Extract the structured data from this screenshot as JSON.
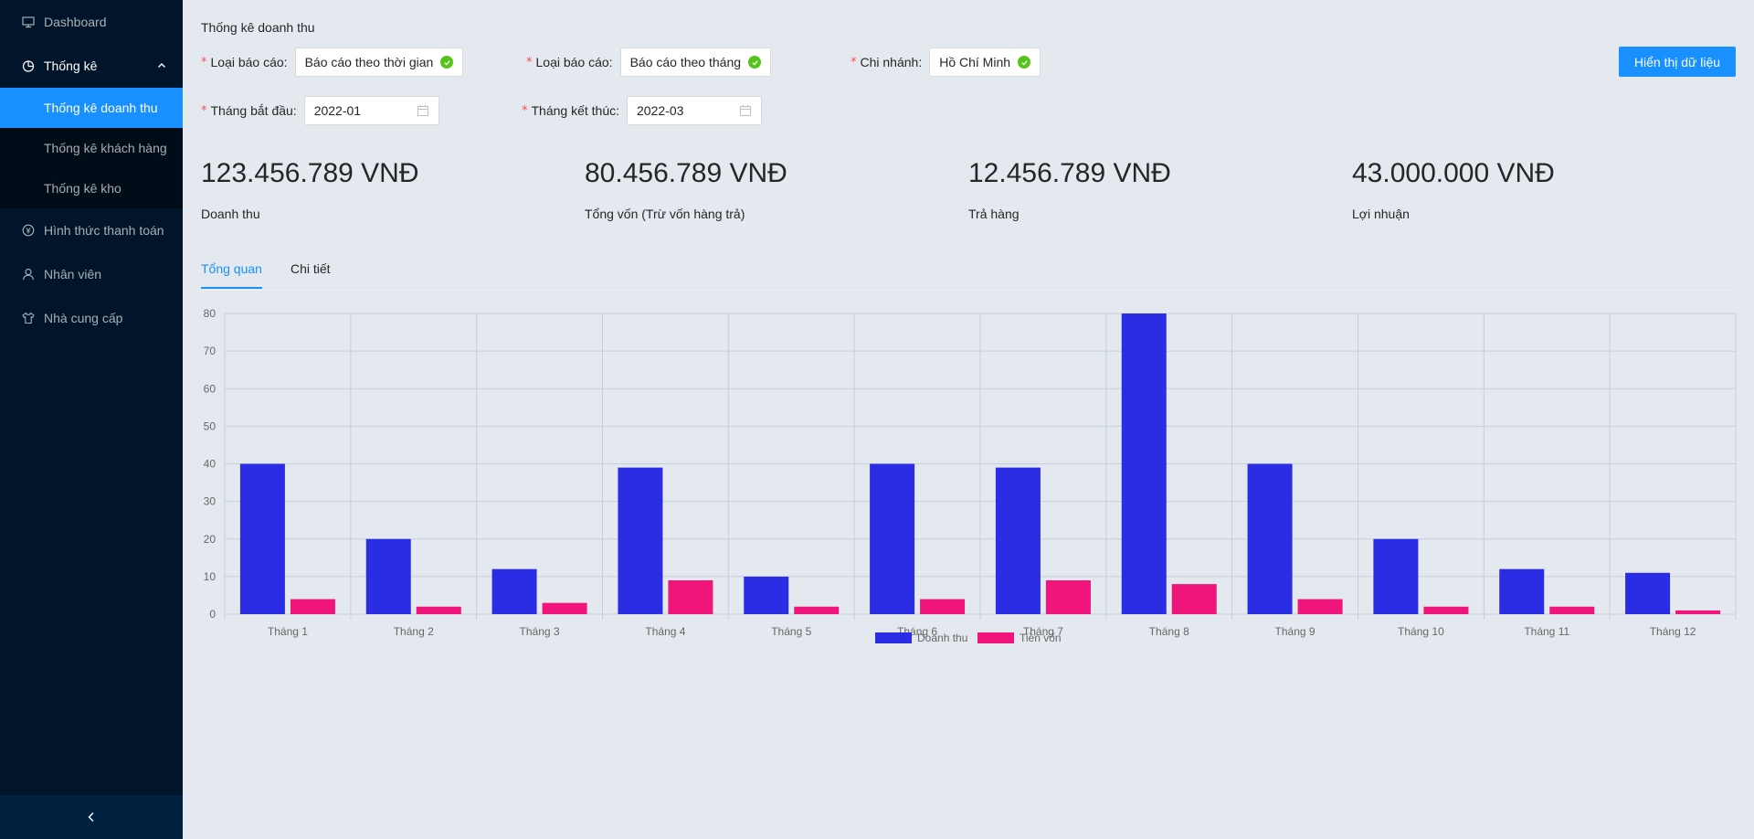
{
  "sidebar": {
    "items": [
      {
        "label": "Dashboard",
        "icon": "monitor-icon"
      },
      {
        "label": "Thống kê",
        "icon": "pie-chart-icon"
      },
      {
        "label": "Hình thức thanh toán",
        "icon": "payment-icon"
      },
      {
        "label": "Nhân viên",
        "icon": "user-icon"
      },
      {
        "label": "Nhà cung cấp",
        "icon": "shirt-icon"
      }
    ],
    "submenu": [
      {
        "label": "Thống kê doanh thu"
      },
      {
        "label": "Thống kê khách hàng"
      },
      {
        "label": "Thống kê kho"
      }
    ]
  },
  "page": {
    "title": "Thống kê doanh thu"
  },
  "filters": {
    "report_type_1": {
      "label": "Loại báo cáo:",
      "value": "Báo cáo theo thời gian"
    },
    "report_type_2": {
      "label": "Loại báo cáo:",
      "value": "Báo cáo theo tháng"
    },
    "branch": {
      "label": "Chi nhánh:",
      "value": "Hồ Chí Minh"
    },
    "start_month": {
      "label": "Tháng bắt đầu:",
      "value": "2022-01"
    },
    "end_month": {
      "label": "Tháng kết thúc:",
      "value": "2022-03"
    },
    "submit_label": "Hiển thị dữ liệu"
  },
  "stats": [
    {
      "value": "123.456.789 VNĐ",
      "caption": "Doanh thu"
    },
    {
      "value": "80.456.789 VNĐ",
      "caption": "Tổng vốn (Trừ vốn hàng trả)"
    },
    {
      "value": "12.456.789 VNĐ",
      "caption": "Trả hàng"
    },
    {
      "value": "43.000.000 VNĐ",
      "caption": "Lợi nhuận"
    }
  ],
  "tabs": [
    {
      "label": "Tổng quan"
    },
    {
      "label": "Chi tiết"
    }
  ],
  "colors": {
    "accent": "#1890ff",
    "series_1": "#2b2de5",
    "series_2": "#f0157a"
  },
  "chart_data": {
    "type": "bar",
    "categories": [
      "Tháng 1",
      "Tháng 2",
      "Tháng 3",
      "Tháng 4",
      "Tháng 5",
      "Tháng 6",
      "Tháng 7",
      "Tháng 8",
      "Tháng 9",
      "Tháng 10",
      "Tháng 11",
      "Tháng 12"
    ],
    "series": [
      {
        "name": "Doanh thu",
        "values": [
          40,
          20,
          12,
          39,
          10,
          40,
          39,
          80,
          40,
          20,
          12,
          11
        ]
      },
      {
        "name": "Tiền vốn",
        "values": [
          4,
          2,
          3,
          9,
          2,
          4,
          9,
          8,
          4,
          2,
          2,
          1
        ]
      }
    ],
    "ylim": [
      0,
      80
    ],
    "yticks": [
      0,
      10,
      20,
      30,
      40,
      50,
      60,
      70,
      80
    ],
    "grid": true,
    "legend": "bottom-center"
  }
}
